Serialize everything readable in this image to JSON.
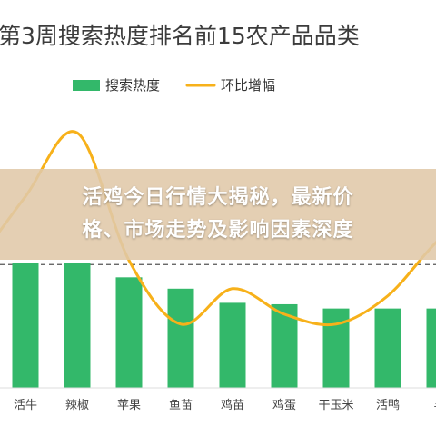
{
  "chart_data": {
    "type": "bar",
    "title": "第3周搜索热度排名前15农产品品类",
    "categories": [
      "活牛",
      "辣椒",
      "苹果",
      "鱼苗",
      "鸡苗",
      "鸡蛋",
      "干玉米",
      "活鸭",
      "羊"
    ],
    "series": [
      {
        "name": "搜索热度",
        "type": "bar",
        "color": "#33b86a",
        "values": [
          8.8,
          8.8,
          7.8,
          7.0,
          6.0,
          5.9,
          5.6,
          5.6,
          5.6
        ]
      },
      {
        "name": "环比增幅",
        "type": "line",
        "color": "#f7b11a",
        "values": [
          13.5,
          18.0,
          9.0,
          4.5,
          7.0,
          5.2,
          4.5,
          6.5,
          10.5
        ]
      }
    ],
    "reference_line": {
      "value": 8.7,
      "style": "dashed",
      "color": "#555555"
    },
    "ylim": [
      0,
      20
    ],
    "grid": false,
    "legend_position": "top-center"
  },
  "overlay": {
    "line1": "活鸡今日行情大揭秘，最新价",
    "line2": "格、市场走势及影响因素深度"
  }
}
